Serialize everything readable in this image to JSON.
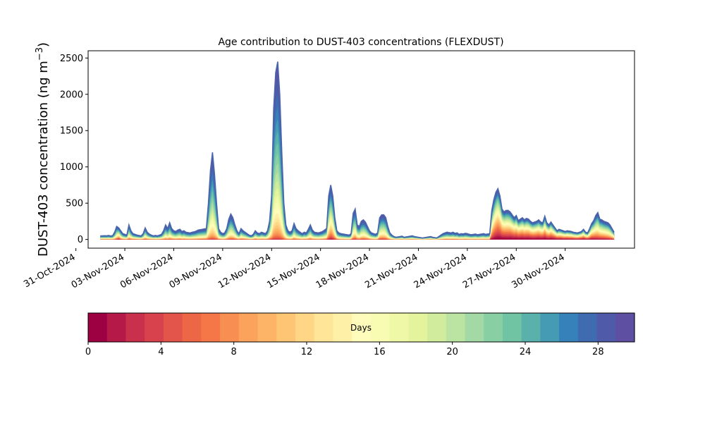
{
  "chart_data": {
    "type": "area",
    "subtype": "stacked-area-by-age",
    "title": "Age contribution to DUST-403 concentrations (FLEXDUST)",
    "ylabel": "DUST-403 concentration (ng m",
    "ylabel_superscript": "−3",
    "ylabel_close": ")",
    "xlabel": "",
    "ylim": [
      -120,
      2600
    ],
    "yticks": [
      0,
      500,
      1000,
      1500,
      2000,
      2500
    ],
    "xlim": [
      "2024-10-31T18:00",
      "2024-12-04T06:00"
    ],
    "xticks": [
      "31-Oct-2024",
      "03-Nov-2024",
      "06-Nov-2024",
      "09-Nov-2024",
      "12-Nov-2024",
      "15-Nov-2024",
      "18-Nov-2024",
      "21-Nov-2024",
      "24-Nov-2024",
      "27-Nov-2024",
      "30-Nov-2024"
    ],
    "x_start": "2024-11-01T12:00",
    "x_step_hours": 3,
    "total": [
      50,
      50,
      52,
      50,
      55,
      48,
      52,
      100,
      180,
      160,
      120,
      80,
      70,
      60,
      200,
      120,
      80,
      70,
      60,
      55,
      50,
      80,
      160,
      100,
      75,
      60,
      50,
      55,
      50,
      60,
      70,
      120,
      200,
      150,
      230,
      150,
      120,
      110,
      130,
      140,
      110,
      120,
      100,
      95,
      90,
      100,
      105,
      115,
      130,
      135,
      140,
      145,
      150,
      500,
      950,
      1200,
      900,
      500,
      150,
      100,
      80,
      90,
      150,
      280,
      350,
      300,
      200,
      120,
      80,
      150,
      120,
      100,
      80,
      60,
      50,
      70,
      120,
      90,
      80,
      100,
      90,
      80,
      120,
      250,
      600,
      1800,
      2300,
      2450,
      2000,
      1200,
      500,
      200,
      120,
      100,
      120,
      220,
      150,
      120,
      100,
      80,
      100,
      90,
      140,
      200,
      130,
      100,
      95,
      90,
      100,
      110,
      130,
      150,
      600,
      750,
      600,
      300,
      120,
      90,
      80,
      75,
      70,
      65,
      60,
      80,
      360,
      420,
      200,
      180,
      250,
      270,
      240,
      180,
      120,
      90,
      80,
      70,
      90,
      300,
      340,
      340,
      300,
      180,
      90,
      60,
      40,
      30,
      35,
      40,
      45,
      30,
      35,
      40,
      45,
      50,
      40,
      35,
      30,
      25,
      20,
      25,
      30,
      35,
      40,
      30,
      25,
      20,
      40,
      60,
      80,
      90,
      100,
      95,
      90,
      100,
      85,
      90,
      70,
      80,
      75,
      85,
      80,
      70,
      65,
      70,
      75,
      65,
      70,
      75,
      80,
      70,
      75,
      80,
      400,
      550,
      650,
      700,
      600,
      420,
      380,
      400,
      400,
      380,
      340,
      300,
      330,
      260,
      280,
      300,
      270,
      290,
      280,
      250,
      230,
      240,
      250,
      270,
      240,
      230,
      320,
      230,
      200,
      240,
      200,
      160,
      120,
      140,
      130,
      120,
      110,
      120,
      115,
      110,
      100,
      95,
      90,
      100,
      110,
      140,
      100,
      90,
      150,
      220,
      260,
      330,
      370,
      280,
      270,
      250,
      240,
      230,
      200,
      150,
      100
    ],
    "fresh_component": [
      10,
      12,
      10,
      12,
      14,
      10,
      12,
      20,
      60,
      90,
      40,
      20,
      15,
      12,
      50,
      30,
      20,
      18,
      15,
      12,
      10,
      20,
      40,
      25,
      18,
      14,
      12,
      12,
      10,
      12,
      15,
      20,
      30,
      25,
      40,
      30,
      25,
      20,
      25,
      30,
      20,
      25,
      20,
      18,
      16,
      18,
      20,
      22,
      25,
      28,
      30,
      32,
      35,
      60,
      90,
      100,
      80,
      50,
      20,
      15,
      12,
      15,
      30,
      60,
      80,
      70,
      50,
      30,
      20,
      35,
      30,
      25,
      20,
      15,
      12,
      15,
      30,
      20,
      18,
      22,
      20,
      18,
      25,
      50,
      80,
      120,
      150,
      140,
      120,
      80,
      40,
      20,
      15,
      12,
      15,
      40,
      25,
      20,
      15,
      12,
      15,
      14,
      25,
      35,
      20,
      15,
      14,
      13,
      15,
      18,
      25,
      40,
      200,
      350,
      250,
      100,
      30,
      15,
      12,
      11,
      10,
      9,
      8,
      12,
      80,
      120,
      50,
      40,
      60,
      70,
      60,
      45,
      25,
      15,
      12,
      10,
      15,
      80,
      100,
      100,
      80,
      40,
      15,
      10,
      7,
      5,
      6,
      7,
      8,
      5,
      6,
      7,
      8,
      9,
      7,
      6,
      5,
      4,
      3,
      4,
      5,
      6,
      7,
      5,
      4,
      3,
      7,
      10,
      14,
      16,
      18,
      17,
      16,
      18,
      15,
      16,
      12,
      14,
      13,
      15,
      14,
      12,
      11,
      12,
      13,
      11,
      12,
      13,
      14,
      12,
      13,
      14,
      250,
      380,
      470,
      520,
      450,
      320,
      290,
      300,
      300,
      290,
      260,
      230,
      250,
      200,
      215,
      230,
      205,
      220,
      215,
      190,
      175,
      180,
      190,
      205,
      180,
      175,
      240,
      170,
      150,
      180,
      150,
      120,
      90,
      100,
      95,
      85,
      80,
      85,
      80,
      78,
      70,
      65,
      62,
      70,
      78,
      100,
      70,
      62,
      100,
      150,
      170,
      200,
      210,
      170,
      160,
      150,
      140,
      130,
      110,
      80,
      50
    ],
    "colorbar": {
      "label": "Days",
      "min": 0,
      "max": 30,
      "ticks": [
        0,
        4,
        8,
        12,
        16,
        20,
        24,
        28
      ],
      "colormap": "Spectral",
      "colors": [
        "#9e0142",
        "#b41947",
        "#c9304c",
        "#d8424d",
        "#e3554a",
        "#ed6645",
        "#f57747",
        "#f88e52",
        "#fba25d",
        "#fdb467",
        "#fdc574",
        "#fed685",
        "#fee597",
        "#fef1a7",
        "#fffcbb",
        "#f8fcb2",
        "#eff8a6",
        "#e4f49c",
        "#d1ec9c",
        "#bbe3a1",
        "#a2d9a4",
        "#88cfa4",
        "#70c4a4",
        "#5ab0ab",
        "#459bb3",
        "#3681ba",
        "#3f6bb0",
        "#4f5aa8",
        "#5e4fa2"
      ]
    }
  }
}
